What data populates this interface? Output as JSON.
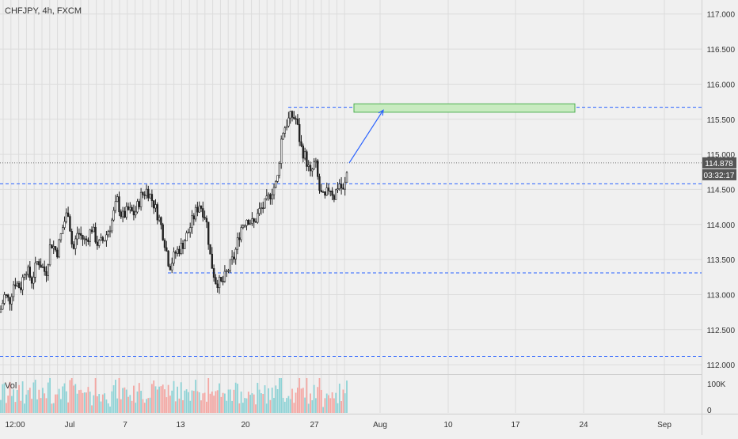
{
  "header": {
    "symbol": "CHFJPY, 4h, FXCM"
  },
  "colors": {
    "background": "#f0f0f0",
    "grid": "#dcdcdc",
    "candle": "#222222",
    "level_line": "#2962ff",
    "target_fill": "#c8ebc0",
    "target_border": "#4caf50",
    "arrow": "#2962ff",
    "vol_up": "#8fd3d6",
    "vol_down": "#f4a7a3",
    "price_badge": "#555555"
  },
  "chart_data": {
    "type": "candlestick",
    "title": "CHFJPY, 4h, FXCM",
    "x_tick_labels": [
      "12:00",
      "Jul",
      "7",
      "13",
      "20",
      "27",
      "Aug",
      "10",
      "17",
      "24",
      "Sep"
    ],
    "y_tick_labels": [
      "117.000",
      "116.500",
      "116.000",
      "115.500",
      "115.000",
      "114.500",
      "114.000",
      "113.500",
      "113.000",
      "112.500",
      "112.000"
    ],
    "ylim": [
      111.9,
      117.2
    ],
    "last_price_label": "114.878",
    "countdown_label": "03:32:17",
    "current_price": 114.878,
    "close_path": [
      {
        "t": 0,
        "p": 112.75
      },
      {
        "t": 6,
        "p": 113.0
      },
      {
        "t": 12,
        "p": 112.9
      },
      {
        "t": 18,
        "p": 113.2
      },
      {
        "t": 26,
        "p": 113.1
      },
      {
        "t": 32,
        "p": 113.4
      },
      {
        "t": 40,
        "p": 113.2
      },
      {
        "t": 48,
        "p": 113.5
      },
      {
        "t": 58,
        "p": 113.3
      },
      {
        "t": 64,
        "p": 113.75
      },
      {
        "t": 72,
        "p": 113.6
      },
      {
        "t": 80,
        "p": 114.0
      },
      {
        "t": 86,
        "p": 114.2
      },
      {
        "t": 92,
        "p": 113.6
      },
      {
        "t": 98,
        "p": 113.9
      },
      {
        "t": 108,
        "p": 113.75
      },
      {
        "t": 116,
        "p": 113.95
      },
      {
        "t": 124,
        "p": 113.7
      },
      {
        "t": 132,
        "p": 113.8
      },
      {
        "t": 140,
        "p": 114.0
      },
      {
        "t": 148,
        "p": 114.35
      },
      {
        "t": 154,
        "p": 114.1
      },
      {
        "t": 162,
        "p": 114.2
      },
      {
        "t": 170,
        "p": 114.15
      },
      {
        "t": 178,
        "p": 114.4
      },
      {
        "t": 186,
        "p": 114.5
      },
      {
        "t": 194,
        "p": 114.3
      },
      {
        "t": 202,
        "p": 114.05
      },
      {
        "t": 208,
        "p": 113.75
      },
      {
        "t": 214,
        "p": 113.4
      },
      {
        "t": 222,
        "p": 113.6
      },
      {
        "t": 230,
        "p": 113.7
      },
      {
        "t": 238,
        "p": 113.9
      },
      {
        "t": 246,
        "p": 114.15
      },
      {
        "t": 252,
        "p": 114.3
      },
      {
        "t": 260,
        "p": 114.1
      },
      {
        "t": 266,
        "p": 113.5
      },
      {
        "t": 272,
        "p": 113.2
      },
      {
        "t": 280,
        "p": 113.15
      },
      {
        "t": 288,
        "p": 113.35
      },
      {
        "t": 296,
        "p": 113.55
      },
      {
        "t": 304,
        "p": 113.95
      },
      {
        "t": 312,
        "p": 114.1
      },
      {
        "t": 320,
        "p": 114.0
      },
      {
        "t": 328,
        "p": 114.2
      },
      {
        "t": 336,
        "p": 114.3
      },
      {
        "t": 344,
        "p": 114.5
      },
      {
        "t": 350,
        "p": 114.6
      },
      {
        "t": 356,
        "p": 115.3
      },
      {
        "t": 362,
        "p": 115.45
      },
      {
        "t": 368,
        "p": 115.55
      },
      {
        "t": 374,
        "p": 115.5
      },
      {
        "t": 380,
        "p": 115.1
      },
      {
        "t": 386,
        "p": 114.95
      },
      {
        "t": 392,
        "p": 114.7
      },
      {
        "t": 398,
        "p": 114.9
      },
      {
        "t": 404,
        "p": 114.45
      },
      {
        "t": 410,
        "p": 114.35
      },
      {
        "t": 416,
        "p": 114.55
      },
      {
        "t": 422,
        "p": 114.4
      },
      {
        "t": 428,
        "p": 114.6
      },
      {
        "t": 434,
        "p": 114.45
      },
      {
        "t": 440,
        "p": 114.878
      }
    ],
    "key_levels": [
      {
        "price": 115.67,
        "from_x": 364
      },
      {
        "price": 114.58,
        "from_x": 0
      },
      {
        "price": 113.31,
        "from_x": 212
      },
      {
        "price": 112.12,
        "from_x": 0
      }
    ],
    "target_zone": {
      "low": 115.6,
      "high": 115.72
    },
    "projection_arrow": {
      "from": 114.878,
      "to": 115.63
    },
    "volume": {
      "label": "Vol",
      "y_tick_labels": [
        "100K",
        "0"
      ]
    }
  }
}
